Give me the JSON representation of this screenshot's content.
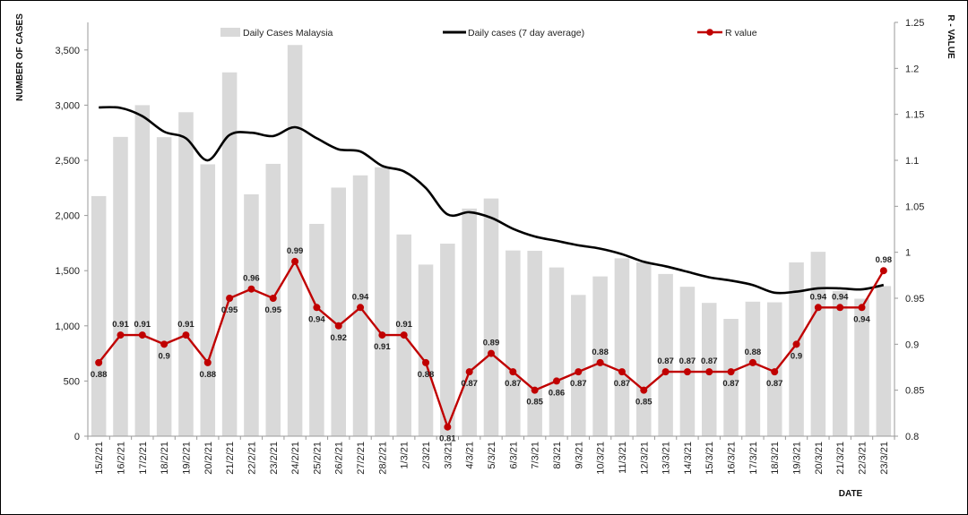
{
  "chart_data": {
    "type": "bar",
    "categories": [
      "15/2/21",
      "16/2/21",
      "17/2/21",
      "18/2/21",
      "19/2/21",
      "20/2/21",
      "21/2/21",
      "22/2/21",
      "23/2/21",
      "24/2/21",
      "25/2/21",
      "26/2/21",
      "27/2/21",
      "28/2/21",
      "1/3/21",
      "2/3/21",
      "3/3/21",
      "4/3/21",
      "5/3/21",
      "6/3/21",
      "7/3/21",
      "8/3/21",
      "9/3/21",
      "10/3/21",
      "11/3/21",
      "12/3/21",
      "13/3/21",
      "14/3/21",
      "15/3/21",
      "16/3/21",
      "17/3/21",
      "18/3/21",
      "19/3/21",
      "20/3/21",
      "21/3/21",
      "22/3/21",
      "23/3/21"
    ],
    "series": [
      {
        "name": "Daily Cases Malaysia",
        "type": "bar",
        "axis": "left",
        "color": "#d9d9d9",
        "values": [
          2176,
          2712,
          3000,
          2710,
          2936,
          2464,
          3297,
          2192,
          2468,
          3545,
          1924,
          2253,
          2364,
          2437,
          1828,
          1555,
          1745,
          2063,
          2154,
          1683,
          1680,
          1529,
          1280,
          1448,
          1612,
          1576,
          1470,
          1354,
          1208,
          1063,
          1219,
          1213,
          1575,
          1671,
          1316,
          1246,
          1360
        ]
      },
      {
        "name": "Daily cases (7 day average)",
        "type": "line",
        "axis": "left",
        "color": "#000000",
        "values": [
          2980,
          2975,
          2900,
          2760,
          2700,
          2500,
          2730,
          2750,
          2720,
          2800,
          2700,
          2600,
          2580,
          2450,
          2400,
          2250,
          2010,
          2030,
          1980,
          1880,
          1810,
          1770,
          1730,
          1700,
          1650,
          1580,
          1540,
          1490,
          1440,
          1410,
          1370,
          1300,
          1310,
          1340,
          1340,
          1330,
          1370
        ]
      },
      {
        "name": "R value",
        "type": "line-markers",
        "axis": "right",
        "color": "#c00000",
        "values": [
          0.88,
          0.91,
          0.91,
          0.9,
          0.91,
          0.88,
          0.95,
          0.96,
          0.95,
          0.99,
          0.94,
          0.92,
          0.94,
          0.91,
          0.91,
          0.88,
          0.81,
          0.87,
          0.89,
          0.87,
          0.85,
          0.86,
          0.87,
          0.88,
          0.87,
          0.85,
          0.87,
          0.87,
          0.87,
          0.87,
          0.88,
          0.87,
          0.9,
          0.94,
          0.94,
          0.94,
          0.98
        ]
      }
    ],
    "r_labels": [
      "0.88",
      "0.91",
      "0.91",
      "0.9",
      "0.91",
      "0.88",
      "0.95",
      "0.96",
      "0.95",
      "0.99",
      "0.94",
      "0.92",
      "0.94",
      "0.91",
      "0.91",
      "0.88",
      "0.81",
      "0.87",
      "0.89",
      "0.87",
      "0.85",
      "0.86",
      "0.87",
      "0.88",
      "0.87",
      "0.85",
      "0.87",
      "0.87",
      "0.87",
      "0.87",
      "0.88",
      "0.87",
      "0.9",
      "0.94",
      "0.94",
      "0.94",
      "0.98"
    ],
    "ylabel": "NUMBER  OF CASES",
    "y2label": "R - VALUE",
    "xlabel": "DATE",
    "ylim": [
      0,
      3750
    ],
    "yticks": [
      0,
      500,
      1000,
      1500,
      2000,
      2500,
      3000,
      3500
    ],
    "ytick_labels": [
      "0",
      "500",
      "1,000",
      "1,500",
      "2,000",
      "2,500",
      "3,000",
      "3,500"
    ],
    "y2lim": [
      0.8,
      1.25
    ],
    "y2ticks": [
      0.8,
      0.85,
      0.9,
      0.95,
      1.0,
      1.05,
      1.1,
      1.15,
      1.2,
      1.25
    ],
    "y2tick_labels": [
      "0.8",
      "0.85",
      "0.9",
      "0.95",
      "1",
      "1.05",
      "1.1",
      "1.15",
      "1.2",
      "1.25"
    ],
    "grid": false,
    "legend_position": "top"
  }
}
